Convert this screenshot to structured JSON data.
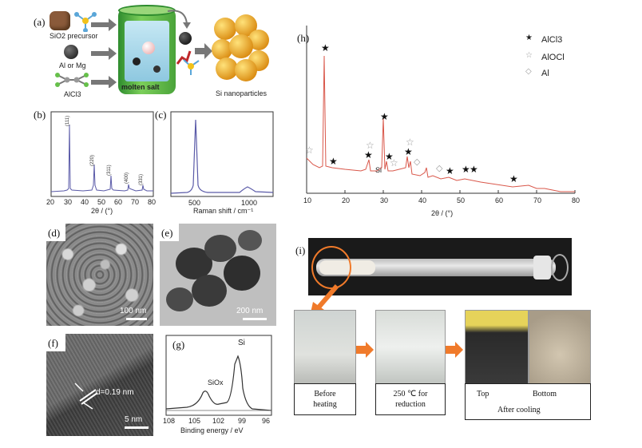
{
  "figure": {
    "a": {
      "label": "(a)",
      "sio2_precursor": "SiO2 precursor",
      "al_or_mg": "Al or Mg",
      "alcl3": "AlCl3",
      "molten_salt": "molten salt",
      "si_nanoparticles": "Si nanoparticles"
    },
    "b": {
      "label": "(b)",
      "xlabel": "2θ / (°)",
      "ticks": [
        "20",
        "30",
        "40",
        "50",
        "60",
        "70",
        "80"
      ],
      "peaks": [
        "(111)",
        "(220)",
        "(311)",
        "(400)",
        "(331)"
      ]
    },
    "c": {
      "label": "(c)",
      "xlabel": "Raman shift / cm⁻¹",
      "ticks": [
        "500",
        "1000"
      ]
    },
    "d": {
      "label": "(d)",
      "scale": "100 nm"
    },
    "e": {
      "label": "(e)",
      "scale": "200 nm"
    },
    "f": {
      "label": "(f)",
      "d_spacing": "d=0.19 nm",
      "scale": "5 nm"
    },
    "g": {
      "label": "(g)",
      "xlabel": "Binding energy / eV",
      "ticks": [
        "108",
        "105",
        "102",
        "99",
        "96"
      ],
      "si_label": "Si",
      "siox_label": "SiOx"
    },
    "h": {
      "label": "(h)",
      "xlabel": "2θ / (°)",
      "ticks": [
        "10",
        "20",
        "30",
        "40",
        "50",
        "60",
        "70",
        "80"
      ],
      "legend": [
        "AlCl3",
        "AlOCl",
        "Al"
      ],
      "si_label": "Si"
    },
    "i": {
      "label": "(i)",
      "captions": {
        "before": [
          "Before",
          "heating"
        ],
        "reduction": [
          "250 ℃ for",
          "reduction"
        ],
        "top": "Top",
        "bottom": "Bottom",
        "after": "After cooling"
      }
    }
  },
  "colors": {
    "xrd_line": "#5a5aa8",
    "h_line": "#d9574a",
    "arrow": "#f07a2a"
  }
}
